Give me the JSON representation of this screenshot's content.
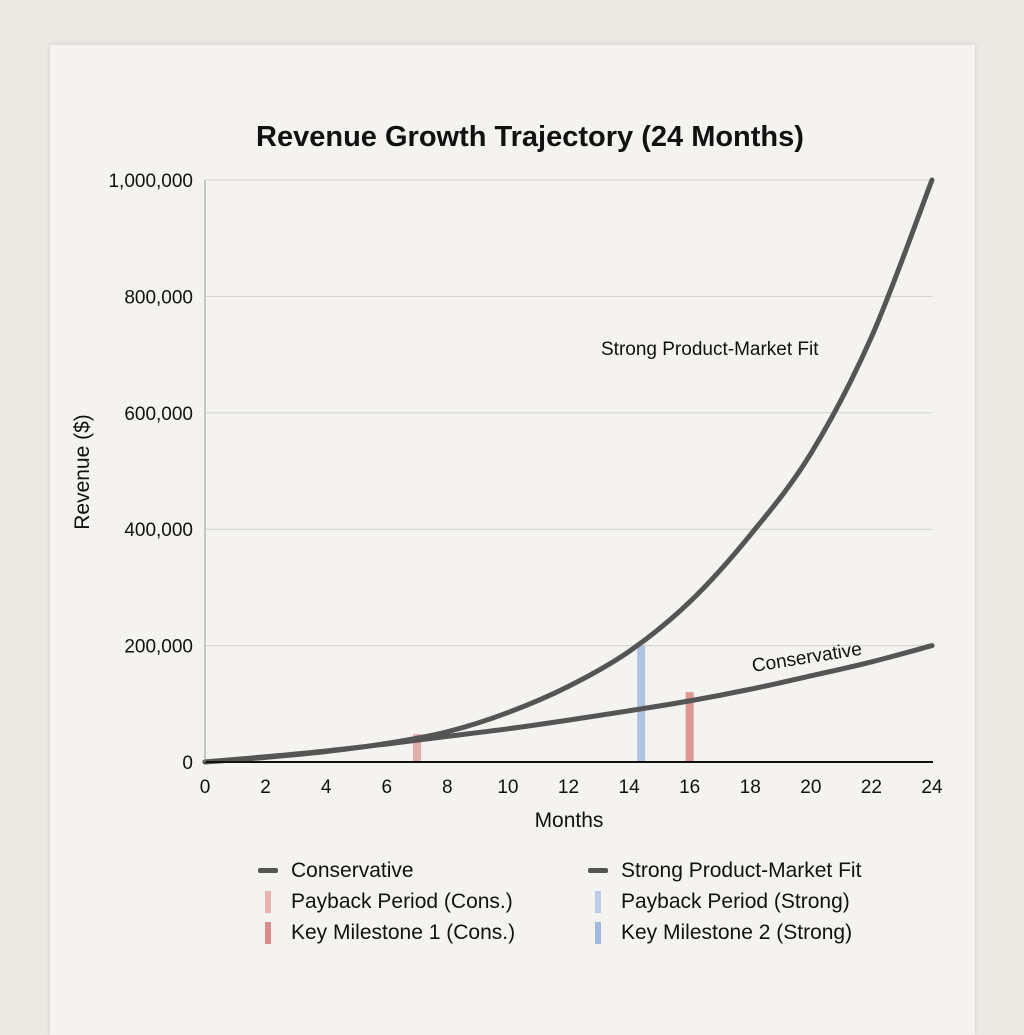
{
  "chart_data": {
    "type": "line",
    "title": "Revenue Growth Trajectory (24 Months)",
    "xlabel": "Months",
    "ylabel": "Revenue ($)",
    "xlim": [
      0,
      24
    ],
    "ylim": [
      0,
      1000000
    ],
    "xticks": [
      "0",
      "2",
      "4",
      "6",
      "8",
      "10",
      "12",
      "14",
      "16",
      "18",
      "20",
      "22",
      "24"
    ],
    "yticks": [
      "0",
      "200,000",
      "400,000",
      "600,000",
      "800,000",
      "1,000,000"
    ],
    "ytick_values": [
      0,
      200000,
      400000,
      600000,
      800000,
      1000000
    ],
    "grid": true,
    "x": [
      0,
      2,
      4,
      6,
      8,
      10,
      12,
      14,
      16,
      18,
      20,
      22,
      24
    ],
    "series": [
      {
        "name": "Conservative",
        "color": "#555555",
        "values": [
          0,
          9000,
          19000,
          31000,
          44000,
          57000,
          72000,
          88000,
          105000,
          125000,
          148000,
          172000,
          200000
        ]
      },
      {
        "name": "Strong Product-Market Fit",
        "color": "#555555",
        "values": [
          0,
          8000,
          18000,
          32000,
          52000,
          85000,
          130000,
          190000,
          275000,
          390000,
          530000,
          730000,
          1000000
        ]
      }
    ],
    "markers": [
      {
        "name": "Payback Period (Cons.)",
        "color": "#e3a5a3",
        "x": 7,
        "value": 48000
      },
      {
        "name": "Payback Period (Strong)",
        "color": "#a9bde0",
        "x": 14.4,
        "value": 200000
      },
      {
        "name": "Key Milestone 1 (Cons.)",
        "color": "#dc8f8d",
        "x": 16,
        "value": 120000
      },
      {
        "name": "Key Milestone 2 (Strong)",
        "color": "#9fb3dc",
        "x": 14.4,
        "value": 200000
      }
    ],
    "annotations": [
      {
        "text": "Strong Product-Market Fit"
      },
      {
        "text": "Conservative"
      }
    ],
    "legend_position": "bottom",
    "legend": [
      "Conservative",
      "Strong Product-Market Fit",
      "Payback Period (Cons.)",
      "Payback Period (Strong)",
      "Key Milestone 1 (Cons.)",
      "Key Milestone 2 (Strong)"
    ]
  }
}
